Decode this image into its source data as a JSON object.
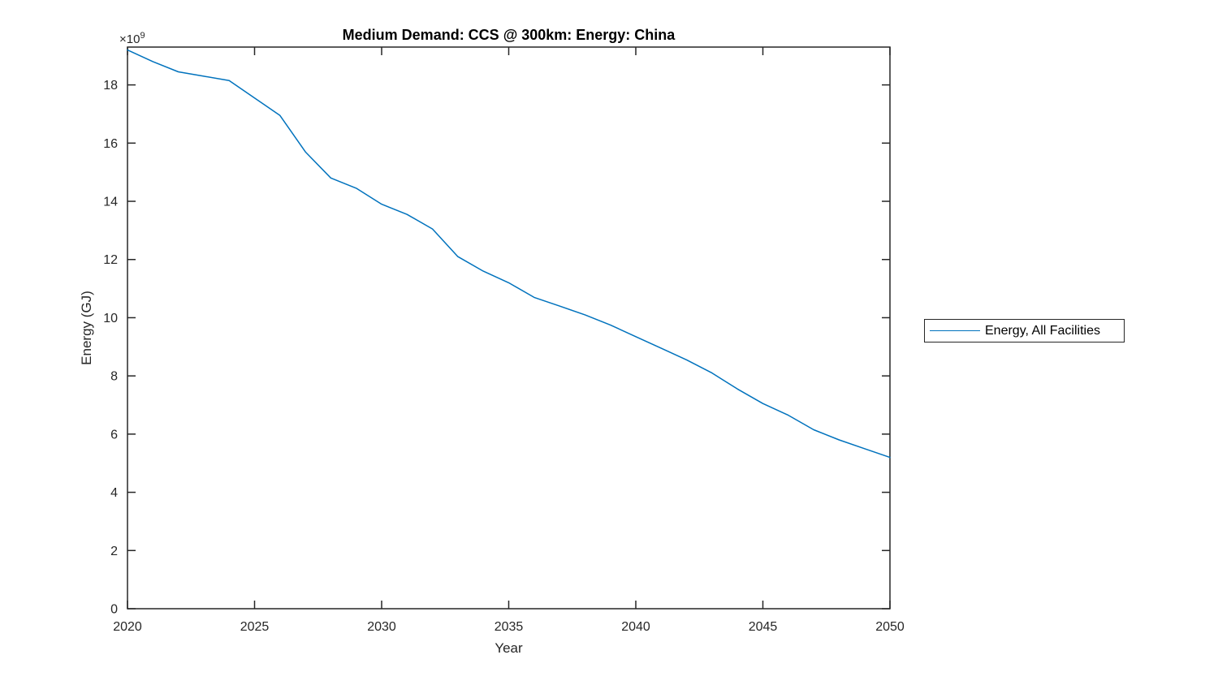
{
  "chart_data": {
    "type": "line",
    "title": "Medium Demand: CCS @ 300km: Energy: China",
    "xlabel": "Year",
    "ylabel": "Energy (GJ)",
    "y_exponent_display": {
      "base": "×10",
      "power": "9"
    },
    "xlim": [
      2020,
      2050
    ],
    "ylim_e9": [
      0,
      19.3
    ],
    "x_ticks": [
      2020,
      2025,
      2030,
      2035,
      2040,
      2045,
      2050
    ],
    "y_ticks_e9": [
      0,
      2,
      4,
      6,
      8,
      10,
      12,
      14,
      16,
      18
    ],
    "grid": false,
    "box": true,
    "tick_direction": "in",
    "legend_location": "east-outside",
    "x": [
      2020,
      2021,
      2022,
      2023,
      2024,
      2025,
      2026,
      2027,
      2028,
      2029,
      2030,
      2031,
      2032,
      2033,
      2034,
      2035,
      2036,
      2037,
      2038,
      2039,
      2040,
      2041,
      2042,
      2043,
      2044,
      2045,
      2046,
      2047,
      2048,
      2049,
      2050
    ],
    "series": [
      {
        "name": "Energy, All Facilities",
        "color": "#0072BD",
        "values_e9_gj": [
          19.2,
          18.8,
          18.45,
          18.3,
          18.15,
          17.55,
          16.95,
          15.7,
          14.8,
          14.45,
          13.9,
          13.55,
          13.05,
          12.1,
          11.6,
          11.2,
          10.7,
          10.4,
          10.1,
          9.75,
          9.35,
          8.95,
          8.55,
          8.1,
          7.55,
          7.05,
          6.65,
          6.15,
          5.8,
          5.5,
          5.2
        ]
      }
    ]
  },
  "style": {
    "line_color": "#0072BD",
    "axis_color": "#262626",
    "tick_label_color": "#262626",
    "title_color": "#000000",
    "background": "#FFFFFF"
  }
}
